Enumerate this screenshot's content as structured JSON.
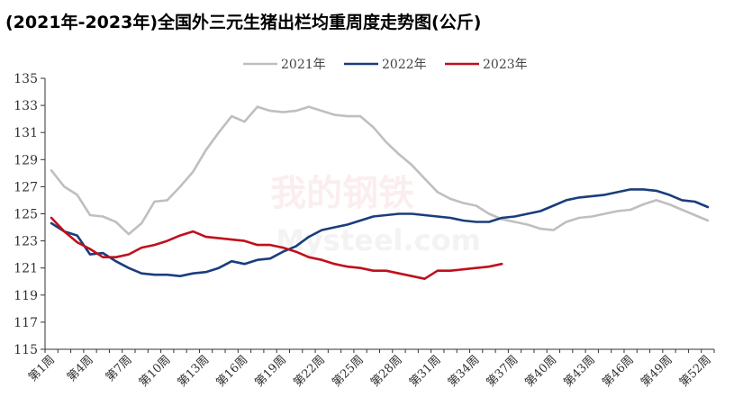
{
  "chart_data": {
    "type": "line",
    "title": "(2021年-2023年)全国外三元生猪出栏均重周度走势图(公斤)",
    "xlabel": "",
    "ylabel": "",
    "ylim": [
      115,
      135
    ],
    "yticks": [
      115,
      117,
      119,
      121,
      123,
      125,
      127,
      129,
      131,
      133,
      135
    ],
    "x_count": 52,
    "x_tick_labels": [
      "第1周",
      "第4周",
      "第7周",
      "第10周",
      "第13周",
      "第16周",
      "第19周",
      "第22周",
      "第25周",
      "第28周",
      "第31周",
      "第34周",
      "第37周",
      "第40周",
      "第43周",
      "第46周",
      "第49周",
      "第52周"
    ],
    "x_tick_weeks": [
      1,
      4,
      7,
      10,
      13,
      16,
      19,
      22,
      25,
      28,
      31,
      34,
      37,
      40,
      43,
      46,
      49,
      52
    ],
    "legend_position": "top-center",
    "grid": false,
    "watermark": "我的钢铁 Mysteel.com",
    "series": [
      {
        "name": "2021年",
        "color": "#bfbfbf",
        "values": [
          128.2,
          127.0,
          126.4,
          124.9,
          124.8,
          124.4,
          123.5,
          124.3,
          125.9,
          126.0,
          127.0,
          128.1,
          129.7,
          131.0,
          132.2,
          131.8,
          132.9,
          132.6,
          132.5,
          132.6,
          132.9,
          132.6,
          132.3,
          132.2,
          132.2,
          131.4,
          130.3,
          129.4,
          128.6,
          127.6,
          126.6,
          126.1,
          125.8,
          125.6,
          125.0,
          124.6,
          124.4,
          124.2,
          123.9,
          123.8,
          124.4,
          124.7,
          124.8,
          125.0,
          125.2,
          125.3,
          125.7,
          126.0,
          125.7,
          125.3,
          124.9,
          124.5
        ]
      },
      {
        "name": "2022年",
        "color": "#1a3d7c",
        "values": [
          124.3,
          123.7,
          123.4,
          122.0,
          122.1,
          121.5,
          121.0,
          120.6,
          120.5,
          120.5,
          120.4,
          120.6,
          120.7,
          121.0,
          121.5,
          121.3,
          121.6,
          121.7,
          122.2,
          122.6,
          123.3,
          123.8,
          124.0,
          124.2,
          124.5,
          124.8,
          124.9,
          125.0,
          125.0,
          124.9,
          124.8,
          124.7,
          124.5,
          124.4,
          124.4,
          124.7,
          124.8,
          125.0,
          125.2,
          125.6,
          126.0,
          126.2,
          126.3,
          126.4,
          126.6,
          126.8,
          126.8,
          126.7,
          126.4,
          126.0,
          125.9,
          125.5
        ]
      },
      {
        "name": "2023年",
        "color": "#c0101d",
        "values": [
          124.7,
          123.7,
          122.9,
          122.4,
          121.8,
          121.8,
          122.0,
          122.5,
          122.7,
          123.0,
          123.4,
          123.7,
          123.3,
          123.2,
          123.1,
          123.0,
          122.7,
          122.7,
          122.5,
          122.2,
          121.8,
          121.6,
          121.3,
          121.1,
          121.0,
          120.8,
          120.8,
          120.6,
          120.4,
          120.2,
          120.8,
          120.8,
          120.9,
          121.0,
          121.1,
          121.3
        ]
      }
    ]
  }
}
